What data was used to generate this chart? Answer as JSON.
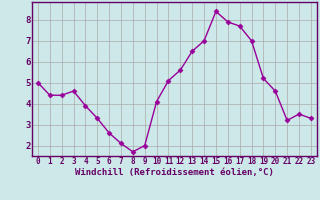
{
  "x": [
    0,
    1,
    2,
    3,
    4,
    5,
    6,
    7,
    8,
    9,
    10,
    11,
    12,
    13,
    14,
    15,
    16,
    17,
    18,
    19,
    20,
    21,
    22,
    23
  ],
  "y": [
    5.0,
    4.4,
    4.4,
    4.6,
    3.9,
    3.3,
    2.6,
    2.1,
    1.7,
    2.0,
    4.1,
    5.1,
    5.6,
    6.5,
    7.0,
    8.4,
    7.9,
    7.7,
    7.0,
    5.2,
    4.6,
    3.2,
    3.5,
    3.3
  ],
  "line_color": "#990099",
  "marker": "D",
  "marker_size": 2.5,
  "line_width": 1.0,
  "bg_color": "#cce8e8",
  "grid_color": "#aaaaaa",
  "xlabel": "Windchill (Refroidissement éolien,°C)",
  "xlim": [
    -0.5,
    23.5
  ],
  "ylim": [
    1.5,
    8.85
  ],
  "yticks": [
    2,
    3,
    4,
    5,
    6,
    7,
    8
  ],
  "xticks": [
    0,
    1,
    2,
    3,
    4,
    5,
    6,
    7,
    8,
    9,
    10,
    11,
    12,
    13,
    14,
    15,
    16,
    17,
    18,
    19,
    20,
    21,
    22,
    23
  ],
  "xlabel_fontsize": 6.5,
  "xtick_fontsize": 5.5,
  "ytick_fontsize": 6.5,
  "spine_color": "#660066",
  "label_color": "#660066"
}
